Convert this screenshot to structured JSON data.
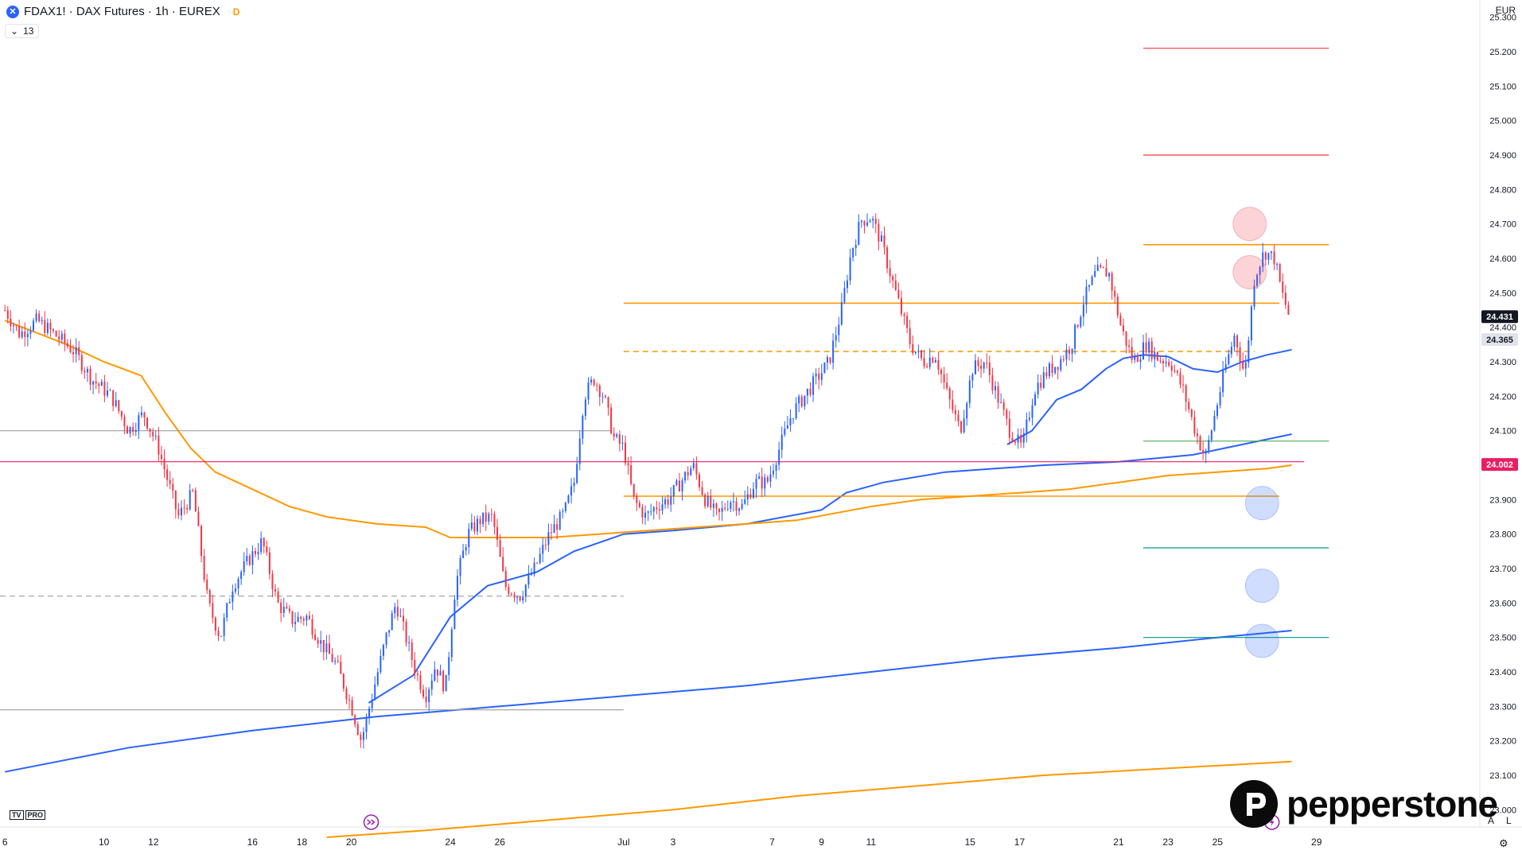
{
  "header": {
    "symbol_icon": "x-circle-icon",
    "title": "FDAX1! · DAX Futures · 1h · EUREX",
    "flag": "D",
    "indicator_count": "13",
    "currency": "EUR"
  },
  "branding": {
    "platform_logo": "TV",
    "platform_tier": "PRO",
    "broker": "pepperstone"
  },
  "bottom_right": {
    "auto": "A",
    "log": "L"
  },
  "chart_data": {
    "type": "candlestick",
    "title": "FDAX1! · DAX Futures · 1h · EUREX",
    "ylim": [
      22950,
      25350
    ],
    "y_ticks": [
      25300,
      25200,
      25100,
      25000,
      24900,
      24800,
      24700,
      24600,
      24500,
      24400,
      24300,
      24200,
      24100,
      24000,
      23900,
      23800,
      23700,
      23600,
      23500,
      23400,
      23300,
      23200,
      23100,
      23000
    ],
    "y_tick_labels": [
      "25.300",
      "25.200",
      "25.100",
      "25.000",
      "24.900",
      "24.800",
      "24.700",
      "24.600",
      "24.500",
      "24.400",
      "24.300",
      "24.200",
      "24.100",
      "24.000",
      "23.900",
      "23.800",
      "23.700",
      "23.600",
      "23.500",
      "23.400",
      "23.300",
      "23.200",
      "23.100",
      "23.000"
    ],
    "x_ticks": [
      "6",
      "10",
      "12",
      "16",
      "18",
      "20",
      "24",
      "26",
      "Jul",
      "3",
      "7",
      "9",
      "11",
      "15",
      "17",
      "21",
      "23",
      "25",
      "29"
    ],
    "x_tick_values": [
      0,
      4,
      6,
      10,
      12,
      14,
      18,
      20,
      25,
      27,
      31,
      33,
      35,
      39,
      41,
      45,
      47,
      49,
      53
    ],
    "xlim": [
      -0.2,
      59.6
    ],
    "price_path": [
      [
        0,
        24450
      ],
      [
        0.6,
        24380
      ],
      [
        1.3,
        24420
      ],
      [
        2,
        24380
      ],
      [
        2.8,
        24330
      ],
      [
        3.5,
        24250
      ],
      [
        4.3,
        24200
      ],
      [
        5,
        24100
      ],
      [
        5.6,
        24150
      ],
      [
        6.2,
        24050
      ],
      [
        7,
        23850
      ],
      [
        7.6,
        23920
      ],
      [
        8.2,
        23600
      ],
      [
        8.7,
        23500
      ],
      [
        9.2,
        23650
      ],
      [
        9.8,
        23720
      ],
      [
        10.4,
        23780
      ],
      [
        11,
        23600
      ],
      [
        11.6,
        23550
      ],
      [
        12.2,
        23560
      ],
      [
        12.8,
        23480
      ],
      [
        13.4,
        23420
      ],
      [
        14,
        23300
      ],
      [
        14.4,
        23200
      ],
      [
        14.8,
        23320
      ],
      [
        15.4,
        23500
      ],
      [
        15.8,
        23600
      ],
      [
        16.2,
        23500
      ],
      [
        16.6,
        23400
      ],
      [
        17,
        23330
      ],
      [
        17.4,
        23420
      ],
      [
        17.8,
        23350
      ],
      [
        18.2,
        23650
      ],
      [
        18.7,
        23800
      ],
      [
        19.2,
        23840
      ],
      [
        19.7,
        23850
      ],
      [
        20.2,
        23650
      ],
      [
        20.8,
        23620
      ],
      [
        21.4,
        23700
      ],
      [
        22,
        23800
      ],
      [
        22.6,
        23860
      ],
      [
        23,
        23950
      ],
      [
        23.4,
        24200
      ],
      [
        23.8,
        24250
      ],
      [
        24.2,
        24200
      ],
      [
        24.6,
        24080
      ],
      [
        25,
        24050
      ],
      [
        25.4,
        23900
      ],
      [
        25.9,
        23850
      ],
      [
        26.3,
        23880
      ],
      [
        26.8,
        23900
      ],
      [
        27.3,
        23950
      ],
      [
        27.8,
        24000
      ],
      [
        28.3,
        23900
      ],
      [
        28.8,
        23850
      ],
      [
        29.3,
        23900
      ],
      [
        29.8,
        23880
      ],
      [
        30.3,
        23950
      ],
      [
        30.8,
        23950
      ],
      [
        31.3,
        24050
      ],
      [
        31.8,
        24150
      ],
      [
        32.3,
        24200
      ],
      [
        32.8,
        24250
      ],
      [
        33.3,
        24300
      ],
      [
        33.8,
        24450
      ],
      [
        34.2,
        24620
      ],
      [
        34.6,
        24710
      ],
      [
        35,
        24720
      ],
      [
        35.4,
        24650
      ],
      [
        35.8,
        24550
      ],
      [
        36.2,
        24450
      ],
      [
        36.6,
        24350
      ],
      [
        37.1,
        24300
      ],
      [
        37.6,
        24320
      ],
      [
        38.1,
        24200
      ],
      [
        38.6,
        24100
      ],
      [
        39.1,
        24280
      ],
      [
        39.6,
        24300
      ],
      [
        40.1,
        24200
      ],
      [
        40.6,
        24100
      ],
      [
        41.1,
        24050
      ],
      [
        41.6,
        24220
      ],
      [
        42.1,
        24270
      ],
      [
        42.6,
        24300
      ],
      [
        43.1,
        24350
      ],
      [
        43.6,
        24480
      ],
      [
        44.1,
        24560
      ],
      [
        44.6,
        24560
      ],
      [
        45.1,
        24400
      ],
      [
        45.6,
        24300
      ],
      [
        46.1,
        24350
      ],
      [
        46.6,
        24310
      ],
      [
        47.1,
        24300
      ],
      [
        47.6,
        24220
      ],
      [
        48.1,
        24100
      ],
      [
        48.5,
        24020
      ],
      [
        48.9,
        24150
      ],
      [
        49.3,
        24280
      ],
      [
        49.7,
        24380
      ],
      [
        50.1,
        24260
      ],
      [
        50.5,
        24550
      ],
      [
        50.9,
        24620
      ],
      [
        51.3,
        24600
      ],
      [
        51.6,
        24500
      ],
      [
        51.9,
        24431
      ]
    ],
    "vwap_bands": [
      {
        "color": "#2962ff",
        "points": [
          [
            0,
            23110
          ],
          [
            5,
            23180
          ],
          [
            10,
            23230
          ],
          [
            15,
            23270
          ],
          [
            20,
            23300
          ],
          [
            25,
            23330
          ],
          [
            30,
            23360
          ],
          [
            35,
            23400
          ],
          [
            40,
            23440
          ],
          [
            45,
            23470
          ],
          [
            49,
            23500
          ],
          [
            52,
            23520
          ]
        ]
      },
      {
        "color": "#2962ff",
        "points": [
          [
            14.7,
            23310
          ],
          [
            16.5,
            23390
          ],
          [
            18,
            23560
          ],
          [
            19.5,
            23650
          ],
          [
            21.5,
            23690
          ],
          [
            23,
            23750
          ],
          [
            25,
            23800
          ],
          [
            27,
            23810
          ],
          [
            30,
            23830
          ],
          [
            33,
            23870
          ],
          [
            34,
            23920
          ],
          [
            35.5,
            23950
          ],
          [
            38,
            23980
          ],
          [
            40,
            23990
          ],
          [
            42,
            24000
          ],
          [
            45,
            24010
          ],
          [
            48,
            24030
          ],
          [
            50,
            24060
          ],
          [
            52,
            24090
          ]
        ]
      },
      {
        "color": "#2962ff",
        "points": [
          [
            40.5,
            24060
          ],
          [
            41.5,
            24100
          ],
          [
            42.5,
            24190
          ],
          [
            43.5,
            24220
          ],
          [
            44.5,
            24280
          ],
          [
            45.2,
            24310
          ],
          [
            46,
            24320
          ],
          [
            47,
            24315
          ],
          [
            48,
            24280
          ],
          [
            49,
            24270
          ],
          [
            50,
            24300
          ],
          [
            51,
            24320
          ],
          [
            52,
            24335
          ]
        ]
      },
      {
        "color": "#ff9800",
        "points": [
          [
            13,
            22920
          ],
          [
            17,
            22940
          ],
          [
            22,
            22970
          ],
          [
            27,
            23000
          ],
          [
            32,
            23040
          ],
          [
            37,
            23070
          ],
          [
            42,
            23100
          ],
          [
            47,
            23120
          ],
          [
            52,
            23140
          ]
        ]
      },
      {
        "color": "#ff9800",
        "points": [
          [
            0,
            24420
          ],
          [
            2.5,
            24350
          ],
          [
            4,
            24300
          ],
          [
            5.5,
            24260
          ],
          [
            6.5,
            24150
          ],
          [
            7.5,
            24050
          ],
          [
            8.5,
            23980
          ],
          [
            10,
            23930
          ],
          [
            11.5,
            23880
          ],
          [
            13,
            23850
          ],
          [
            15,
            23830
          ],
          [
            17,
            23820
          ],
          [
            18,
            23790
          ],
          [
            20,
            23790
          ],
          [
            22,
            23790
          ],
          [
            24,
            23800
          ],
          [
            26,
            23810
          ],
          [
            28,
            23820
          ],
          [
            30,
            23830
          ],
          [
            32,
            23840
          ],
          [
            33.5,
            23860
          ],
          [
            35,
            23880
          ],
          [
            37,
            23900
          ],
          [
            39,
            23910
          ],
          [
            41,
            23920
          ],
          [
            43,
            23930
          ],
          [
            45,
            23950
          ],
          [
            47,
            23970
          ],
          [
            49,
            23980
          ],
          [
            51,
            23990
          ],
          [
            52,
            24000
          ]
        ]
      }
    ],
    "horizontal_levels": [
      {
        "value": 24470,
        "color": "#ff9800",
        "style": "solid",
        "from": 25,
        "to": 51.5
      },
      {
        "value": 24330,
        "color": "#ff9800",
        "style": "dashed",
        "from": 25,
        "to": 50.5
      },
      {
        "value": 23910,
        "color": "#ff9800",
        "style": "solid",
        "from": 25,
        "to": 51.5
      },
      {
        "value": 24010,
        "color": "#e91e63",
        "style": "solid",
        "from": -0.2,
        "to": 52.5
      },
      {
        "value": 24100,
        "color": "#9e9e9e",
        "style": "solid",
        "from": -0.2,
        "to": 24.5
      },
      {
        "value": 23620,
        "color": "#9e9e9e",
        "style": "dashed",
        "from": -0.2,
        "to": 25
      },
      {
        "value": 23290,
        "color": "#9e9e9e",
        "style": "solid",
        "from": -0.2,
        "to": 25
      },
      {
        "value": 25210,
        "color": "#f23645",
        "style": "solid",
        "from": 46,
        "to": 53.5
      },
      {
        "value": 24900,
        "color": "#f23645",
        "style": "solid",
        "from": 46,
        "to": 53.5
      },
      {
        "value": 24640,
        "color": "#ff9800",
        "style": "solid",
        "from": 46,
        "to": 53.5
      },
      {
        "value": 24070,
        "color": "#4caf50",
        "style": "solid",
        "from": 46,
        "to": 53.5
      },
      {
        "value": 23760,
        "color": "#009688",
        "style": "solid",
        "from": 46,
        "to": 53.5
      },
      {
        "value": 23500,
        "color": "#009688",
        "style": "solid",
        "from": 46,
        "to": 53.5
      }
    ],
    "markers": [
      {
        "x": 50.3,
        "y": 24700,
        "color": "#f23645"
      },
      {
        "x": 50.3,
        "y": 24560,
        "color": "#f23645"
      },
      {
        "x": 50.8,
        "y": 23890,
        "color": "#2962ff"
      },
      {
        "x": 50.8,
        "y": 23650,
        "color": "#2962ff"
      },
      {
        "x": 50.8,
        "y": 23490,
        "color": "#2962ff"
      }
    ],
    "price_labels": [
      {
        "value": 24431,
        "text": "24.431",
        "bg": "#131722",
        "fg": "#ffffff"
      },
      {
        "value": 24365,
        "text": "24.365",
        "bg": "#e0e3eb",
        "fg": "#131722"
      },
      {
        "value": 24002,
        "text": "24.002",
        "bg": "#e91e63",
        "fg": "#ffffff"
      }
    ],
    "event_icons": [
      {
        "x": 14.8,
        "name": "dividend-icon",
        "color": "#9c27b0"
      },
      {
        "x": 51.2,
        "name": "lightning-icon",
        "color": "#9c27b0"
      }
    ]
  }
}
